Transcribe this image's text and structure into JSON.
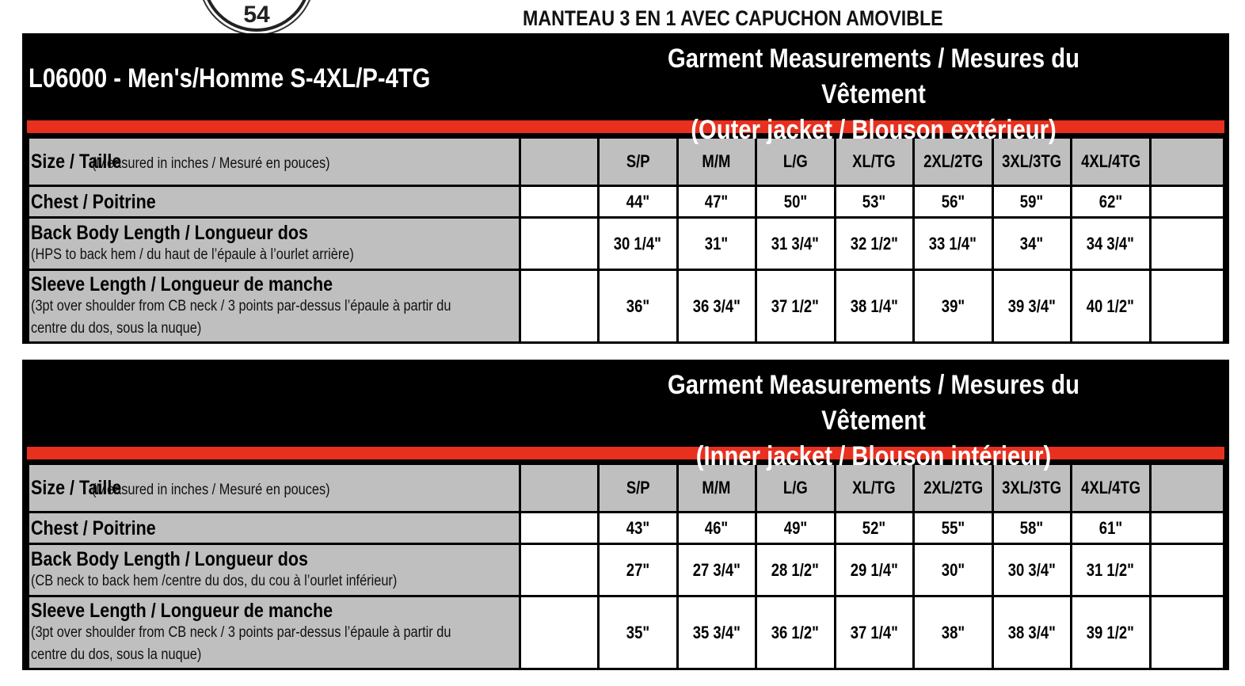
{
  "logo": {
    "text": "54"
  },
  "title": "MANTEAU 3 EN 1 AVEC CAPUCHON AMOVIBLE",
  "model": "L06000 - Men's/Homme S-4XL/P-4TG",
  "colors": {
    "accent_red": "#e8301f",
    "header_gray": "#bfbfbf",
    "header_black": "#000000"
  },
  "sizes": [
    "S/P",
    "M/M",
    "L/G",
    "XL/TG",
    "2XL/2TG",
    "3XL/3TG",
    "4XL/4TG"
  ],
  "tables": [
    {
      "heading_line1": "Garment Measurements / Mesures du Vêtement",
      "heading_line2": "(Outer jacket / Blouson extérieur)",
      "size_label": "Size / Taille",
      "size_note": "(Measured in inches / Mesuré en pouces)",
      "rows": [
        {
          "label": "Chest / Poitrine",
          "note": [],
          "values": [
            "44\"",
            "47\"",
            "50\"",
            "53\"",
            "56\"",
            "59\"",
            "62\""
          ]
        },
        {
          "label": "Back Body Length / Longueur dos",
          "note": [
            "(HPS to back hem  / du haut de l’épaule à l’ourlet arrière)"
          ],
          "values": [
            "30 1/4\"",
            "31\"",
            "31 3/4\"",
            "32 1/2\"",
            "33 1/4\"",
            "34\"",
            "34 3/4\""
          ]
        },
        {
          "label": "Sleeve Length / Longueur de manche",
          "note": [
            "(3pt over shoulder from CB neck / 3 points par-dessus l’épaule à partir du",
            "centre du dos, sous la nuque)"
          ],
          "values": [
            "36\"",
            "36 3/4\"",
            "37 1/2\"",
            "38 1/4\"",
            "39\"",
            "39 3/4\"",
            "40 1/2\""
          ]
        }
      ]
    },
    {
      "heading_line1": "Garment Measurements / Mesures du Vêtement",
      "heading_line2": "(Inner jacket / Blouson intérieur)",
      "size_label": "Size / Taille",
      "size_note": "(Measured in inches / Mesuré en pouces)",
      "rows": [
        {
          "label": "Chest / Poitrine",
          "note": [],
          "values": [
            "43\"",
            "46\"",
            "49\"",
            "52\"",
            "55\"",
            "58\"",
            "61\""
          ]
        },
        {
          "label": "Back Body Length / Longueur dos",
          "note": [
            "(CB neck to back hem /centre du dos, du cou à l’ourlet inférieur)"
          ],
          "values": [
            "27\"",
            "27 3/4\"",
            "28 1/2\"",
            "29 1/4\"",
            "30\"",
            "30 3/4\"",
            "31 1/2\""
          ]
        },
        {
          "label": "Sleeve Length / Longueur de manche",
          "note": [
            "(3pt over shoulder from CB neck / 3 points par-dessus l’épaule à partir du",
            "centre du dos, sous la nuque)"
          ],
          "values": [
            "35\"",
            "35 3/4\"",
            "36 1/2\"",
            "37 1/4\"",
            "38\"",
            "38 3/4\"",
            "39 1/2\""
          ]
        }
      ]
    }
  ]
}
